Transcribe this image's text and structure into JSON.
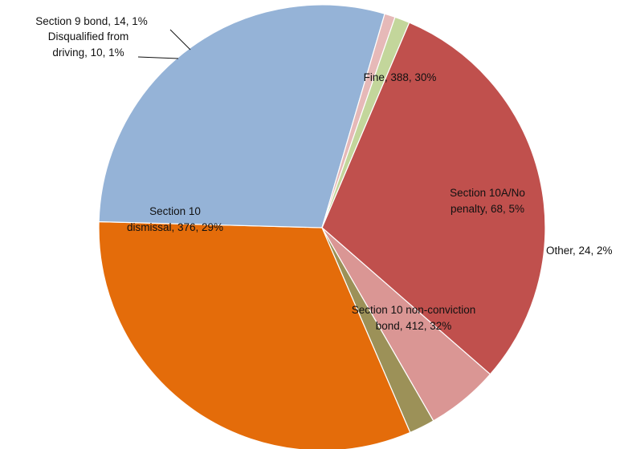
{
  "chart_data": {
    "type": "pie",
    "title": "",
    "start_slice": "Fine",
    "direction": "clockwise",
    "slices": [
      {
        "name": "Fine",
        "value": 388,
        "percent": "30%",
        "color": "#C0504D",
        "label_lines": [
          "Fine, 388, 30%"
        ]
      },
      {
        "name": "Section 10A/No penalty",
        "value": 68,
        "percent": "5%",
        "color": "#DA9694",
        "label_lines": [
          "Section 10A/No",
          "penalty, 68, 5%"
        ]
      },
      {
        "name": "Other",
        "value": 24,
        "percent": "2%",
        "color": "#9C9158",
        "label_lines": [
          "Other, 24, 2%"
        ]
      },
      {
        "name": "Section 10 non-conviction bond",
        "value": 412,
        "percent": "32%",
        "color": "#E46C0A",
        "label_lines": [
          "Section 10 non-conviction",
          "bond, 412, 32%"
        ]
      },
      {
        "name": "Section 10 dismissal",
        "value": 376,
        "percent": "29%",
        "color": "#95B3D7",
        "label_lines": [
          "Section 10",
          "dismissal, 376, 29%"
        ]
      },
      {
        "name": "Disqualified from driving",
        "value": 10,
        "percent": "1%",
        "color": "#E6B9B8",
        "label_lines": [
          "Disqualified from",
          "driving, 10, 1%"
        ]
      },
      {
        "name": "Section 9 bond",
        "value": 14,
        "percent": "1%",
        "color": "#C3D69B",
        "label_lines": [
          "Section 9 bond, 14, 1%"
        ]
      }
    ]
  }
}
